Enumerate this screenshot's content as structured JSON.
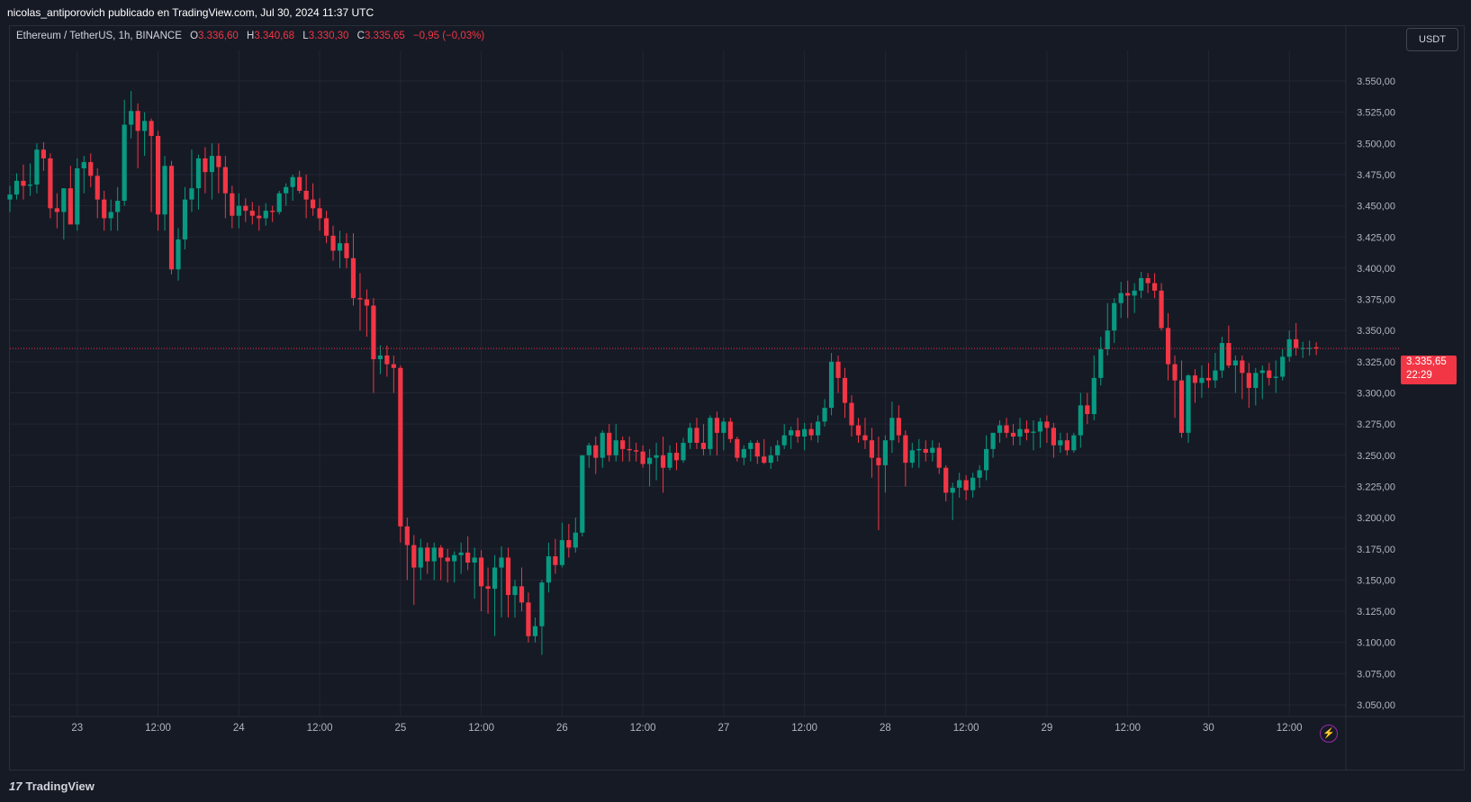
{
  "header": {
    "publisher_line": "nicolas_antiporovich publicado en TradingView.com, Jul 30, 2024 11:37 UTC"
  },
  "legend": {
    "symbol": "Ethereum / TetherUS, 1h, BINANCE",
    "o_label": "O",
    "o_value": "3.336,60",
    "h_label": "H",
    "h_value": "3.340,68",
    "l_label": "L",
    "l_value": "3.330,30",
    "c_label": "C",
    "c_value": "3.335,65",
    "change": "−0,95 (−0,03%)"
  },
  "currency_button": "USDT",
  "last_price": {
    "price": "3.335,65",
    "countdown": "22:29"
  },
  "footer": {
    "brand": "TradingView",
    "brand_mark": "17"
  },
  "colors": {
    "up": "#089981",
    "down": "#f23645",
    "background": "#161a25",
    "grid": "#232632",
    "axis_text": "#b2b5be"
  },
  "chart_data": {
    "type": "candlestick",
    "title": "",
    "y_axis": {
      "ylim": [
        3035,
        3575
      ],
      "ticks": [
        3050,
        3075,
        3100,
        3125,
        3150,
        3175,
        3200,
        3225,
        3250,
        3275,
        3300,
        3325,
        3350,
        3375,
        3400,
        3425,
        3450,
        3475,
        3500,
        3525,
        3550
      ],
      "tick_labels": [
        "3.050,00",
        "3.075,00",
        "3.100,00",
        "3.125,00",
        "3.150,00",
        "3.175,00",
        "3.200,00",
        "3.225,00",
        "3.250,00",
        "3.275,00",
        "3.300,00",
        "3.325,00",
        "3.350,00",
        "3.375,00",
        "3.400,00",
        "3.425,00",
        "3.450,00",
        "3.475,00",
        "3.500,00",
        "3.525,00",
        "3.550,00"
      ]
    },
    "x_axis": {
      "labels": [
        "23",
        "12:00",
        "24",
        "12:00",
        "25",
        "12:00",
        "26",
        "12:00",
        "27",
        "12:00",
        "28",
        "12:00",
        "29",
        "12:00",
        "30",
        "12:00"
      ],
      "label_bar_index": [
        10,
        22,
        34,
        46,
        58,
        70,
        82,
        94,
        106,
        118,
        130,
        142,
        154,
        166,
        178,
        190
      ]
    },
    "last_price_line": 3335.65,
    "ohlc": [
      [
        3455,
        3466,
        3445,
        3459
      ],
      [
        3459,
        3476,
        3455,
        3470
      ],
      [
        3470,
        3483,
        3455,
        3466
      ],
      [
        3466,
        3484,
        3458,
        3467
      ],
      [
        3467,
        3500,
        3460,
        3495
      ],
      [
        3495,
        3501,
        3478,
        3488
      ],
      [
        3488,
        3492,
        3440,
        3448
      ],
      [
        3448,
        3460,
        3432,
        3445
      ],
      [
        3445,
        3464,
        3423,
        3464
      ],
      [
        3464,
        3482,
        3440,
        3435
      ],
      [
        3435,
        3488,
        3430,
        3480
      ],
      [
        3480,
        3490,
        3460,
        3485
      ],
      [
        3485,
        3492,
        3465,
        3474
      ],
      [
        3474,
        3480,
        3440,
        3455
      ],
      [
        3455,
        3462,
        3430,
        3440
      ],
      [
        3440,
        3455,
        3430,
        3445
      ],
      [
        3445,
        3465,
        3430,
        3454
      ],
      [
        3454,
        3535,
        3450,
        3515
      ],
      [
        3515,
        3542,
        3504,
        3526
      ],
      [
        3526,
        3532,
        3480,
        3510
      ],
      [
        3510,
        3525,
        3490,
        3518
      ],
      [
        3518,
        3520,
        3445,
        3506
      ],
      [
        3506,
        3510,
        3430,
        3443
      ],
      [
        3443,
        3490,
        3430,
        3482
      ],
      [
        3482,
        3486,
        3395,
        3399
      ],
      [
        3399,
        3432,
        3390,
        3423
      ],
      [
        3423,
        3465,
        3415,
        3455
      ],
      [
        3455,
        3495,
        3445,
        3464
      ],
      [
        3464,
        3491,
        3447,
        3488
      ],
      [
        3488,
        3497,
        3460,
        3477
      ],
      [
        3477,
        3500,
        3455,
        3490
      ],
      [
        3490,
        3500,
        3460,
        3481
      ],
      [
        3481,
        3490,
        3440,
        3460
      ],
      [
        3460,
        3466,
        3432,
        3442
      ],
      [
        3442,
        3460,
        3432,
        3450
      ],
      [
        3450,
        3456,
        3437,
        3446
      ],
      [
        3446,
        3453,
        3435,
        3442
      ],
      [
        3442,
        3450,
        3430,
        3440
      ],
      [
        3440,
        3452,
        3434,
        3446
      ],
      [
        3446,
        3450,
        3437,
        3445
      ],
      [
        3445,
        3462,
        3443,
        3460
      ],
      [
        3460,
        3468,
        3450,
        3465
      ],
      [
        3465,
        3475,
        3454,
        3473
      ],
      [
        3473,
        3478,
        3460,
        3462
      ],
      [
        3462,
        3475,
        3440,
        3455
      ],
      [
        3455,
        3468,
        3442,
        3448
      ],
      [
        3448,
        3456,
        3430,
        3440
      ],
      [
        3440,
        3446,
        3420,
        3426
      ],
      [
        3426,
        3434,
        3406,
        3414
      ],
      [
        3414,
        3430,
        3400,
        3420
      ],
      [
        3420,
        3428,
        3400,
        3408
      ],
      [
        3408,
        3428,
        3370,
        3376
      ],
      [
        3376,
        3396,
        3350,
        3375
      ],
      [
        3375,
        3383,
        3345,
        3370
      ],
      [
        3370,
        3376,
        3300,
        3327
      ],
      [
        3327,
        3338,
        3315,
        3330
      ],
      [
        3330,
        3338,
        3313,
        3323
      ],
      [
        3323,
        3330,
        3300,
        3320
      ],
      [
        3320,
        3322,
        3180,
        3193
      ],
      [
        3193,
        3200,
        3150,
        3178
      ],
      [
        3178,
        3186,
        3130,
        3160
      ],
      [
        3160,
        3183,
        3150,
        3176
      ],
      [
        3176,
        3180,
        3155,
        3165
      ],
      [
        3165,
        3180,
        3150,
        3176
      ],
      [
        3176,
        3178,
        3150,
        3168
      ],
      [
        3168,
        3175,
        3148,
        3165
      ],
      [
        3165,
        3173,
        3148,
        3170
      ],
      [
        3170,
        3180,
        3155,
        3172
      ],
      [
        3172,
        3185,
        3158,
        3164
      ],
      [
        3164,
        3176,
        3135,
        3168
      ],
      [
        3168,
        3174,
        3125,
        3145
      ],
      [
        3145,
        3160,
        3123,
        3143
      ],
      [
        3143,
        3170,
        3105,
        3160
      ],
      [
        3160,
        3177,
        3120,
        3168
      ],
      [
        3168,
        3176,
        3120,
        3138
      ],
      [
        3138,
        3150,
        3120,
        3145
      ],
      [
        3145,
        3160,
        3125,
        3132
      ],
      [
        3132,
        3140,
        3100,
        3105
      ],
      [
        3105,
        3120,
        3100,
        3113
      ],
      [
        3113,
        3150,
        3090,
        3148
      ],
      [
        3148,
        3180,
        3140,
        3169
      ],
      [
        3169,
        3183,
        3155,
        3162
      ],
      [
        3162,
        3196,
        3160,
        3182
      ],
      [
        3182,
        3195,
        3168,
        3176
      ],
      [
        3176,
        3200,
        3172,
        3188
      ],
      [
        3188,
        3250,
        3185,
        3250
      ],
      [
        3250,
        3260,
        3240,
        3258
      ],
      [
        3258,
        3265,
        3235,
        3248
      ],
      [
        3248,
        3270,
        3240,
        3268
      ],
      [
        3268,
        3275,
        3245,
        3250
      ],
      [
        3250,
        3275,
        3245,
        3262
      ],
      [
        3262,
        3265,
        3245,
        3255
      ],
      [
        3255,
        3265,
        3245,
        3254
      ],
      [
        3254,
        3260,
        3245,
        3253
      ],
      [
        3253,
        3258,
        3240,
        3243
      ],
      [
        3243,
        3255,
        3225,
        3248
      ],
      [
        3248,
        3260,
        3230,
        3250
      ],
      [
        3250,
        3265,
        3220,
        3240
      ],
      [
        3240,
        3258,
        3238,
        3252
      ],
      [
        3252,
        3260,
        3238,
        3246
      ],
      [
        3246,
        3264,
        3244,
        3260
      ],
      [
        3260,
        3276,
        3255,
        3272
      ],
      [
        3272,
        3280,
        3255,
        3260
      ],
      [
        3260,
        3275,
        3250,
        3255
      ],
      [
        3255,
        3282,
        3250,
        3280
      ],
      [
        3280,
        3285,
        3250,
        3268
      ],
      [
        3268,
        3280,
        3254,
        3277
      ],
      [
        3277,
        3280,
        3260,
        3263
      ],
      [
        3263,
        3265,
        3245,
        3248
      ],
      [
        3248,
        3258,
        3242,
        3255
      ],
      [
        3255,
        3262,
        3245,
        3260
      ],
      [
        3260,
        3262,
        3243,
        3249
      ],
      [
        3249,
        3263,
        3243,
        3244
      ],
      [
        3244,
        3257,
        3239,
        3250
      ],
      [
        3250,
        3262,
        3245,
        3258
      ],
      [
        3258,
        3275,
        3255,
        3266
      ],
      [
        3266,
        3273,
        3255,
        3270
      ],
      [
        3270,
        3280,
        3260,
        3265
      ],
      [
        3265,
        3276,
        3254,
        3271
      ],
      [
        3271,
        3276,
        3262,
        3266
      ],
      [
        3266,
        3282,
        3260,
        3277
      ],
      [
        3277,
        3295,
        3273,
        3288
      ],
      [
        3288,
        3332,
        3282,
        3325
      ],
      [
        3325,
        3330,
        3300,
        3312
      ],
      [
        3312,
        3320,
        3280,
        3292
      ],
      [
        3292,
        3298,
        3265,
        3274
      ],
      [
        3274,
        3280,
        3260,
        3266
      ],
      [
        3266,
        3280,
        3255,
        3262
      ],
      [
        3262,
        3272,
        3232,
        3248
      ],
      [
        3248,
        3265,
        3190,
        3242
      ],
      [
        3242,
        3266,
        3220,
        3262
      ],
      [
        3262,
        3293,
        3252,
        3280
      ],
      [
        3280,
        3290,
        3260,
        3266
      ],
      [
        3266,
        3270,
        3225,
        3244
      ],
      [
        3244,
        3260,
        3240,
        3254
      ],
      [
        3254,
        3263,
        3240,
        3255
      ],
      [
        3255,
        3262,
        3245,
        3252
      ],
      [
        3252,
        3262,
        3245,
        3256
      ],
      [
        3256,
        3260,
        3235,
        3240
      ],
      [
        3240,
        3242,
        3213,
        3220
      ],
      [
        3220,
        3228,
        3198,
        3224
      ],
      [
        3224,
        3236,
        3216,
        3230
      ],
      [
        3230,
        3234,
        3214,
        3222
      ],
      [
        3222,
        3236,
        3216,
        3232
      ],
      [
        3232,
        3242,
        3224,
        3238
      ],
      [
        3238,
        3266,
        3230,
        3255
      ],
      [
        3255,
        3266,
        3248,
        3268
      ],
      [
        3268,
        3278,
        3260,
        3274
      ],
      [
        3274,
        3280,
        3264,
        3268
      ],
      [
        3268,
        3275,
        3258,
        3265
      ],
      [
        3265,
        3280,
        3258,
        3271
      ],
      [
        3271,
        3278,
        3262,
        3268
      ],
      [
        3268,
        3278,
        3254,
        3269
      ],
      [
        3269,
        3280,
        3256,
        3277
      ],
      [
        3277,
        3282,
        3260,
        3272
      ],
      [
        3272,
        3276,
        3248,
        3258
      ],
      [
        3258,
        3268,
        3252,
        3262
      ],
      [
        3262,
        3268,
        3250,
        3254
      ],
      [
        3254,
        3268,
        3252,
        3266
      ],
      [
        3266,
        3300,
        3256,
        3290
      ],
      [
        3290,
        3300,
        3275,
        3283
      ],
      [
        3283,
        3330,
        3278,
        3312
      ],
      [
        3312,
        3345,
        3306,
        3335
      ],
      [
        3335,
        3372,
        3330,
        3350
      ],
      [
        3350,
        3376,
        3340,
        3372
      ],
      [
        3372,
        3389,
        3360,
        3380
      ],
      [
        3380,
        3390,
        3360,
        3378
      ],
      [
        3378,
        3388,
        3364,
        3382
      ],
      [
        3382,
        3397,
        3376,
        3392
      ],
      [
        3392,
        3396,
        3380,
        3388
      ],
      [
        3388,
        3396,
        3376,
        3382
      ],
      [
        3382,
        3388,
        3350,
        3352
      ],
      [
        3352,
        3364,
        3310,
        3323
      ],
      [
        3323,
        3330,
        3280,
        3310
      ],
      [
        3310,
        3326,
        3264,
        3268
      ],
      [
        3268,
        3315,
        3260,
        3314
      ],
      [
        3314,
        3319,
        3292,
        3308
      ],
      [
        3308,
        3322,
        3296,
        3312
      ],
      [
        3312,
        3324,
        3304,
        3310
      ],
      [
        3310,
        3332,
        3304,
        3318
      ],
      [
        3318,
        3345,
        3312,
        3340
      ],
      [
        3340,
        3354,
        3320,
        3322
      ],
      [
        3322,
        3330,
        3300,
        3326
      ],
      [
        3326,
        3330,
        3295,
        3316
      ],
      [
        3316,
        3324,
        3288,
        3304
      ],
      [
        3304,
        3320,
        3290,
        3316
      ],
      [
        3316,
        3322,
        3295,
        3318
      ],
      [
        3318,
        3324,
        3306,
        3312
      ],
      [
        3312,
        3326,
        3300,
        3313
      ],
      [
        3313,
        3335,
        3310,
        3329
      ],
      [
        3329,
        3350,
        3325,
        3343
      ],
      [
        3343,
        3356,
        3330,
        3336
      ],
      [
        3336,
        3341,
        3328,
        3336
      ],
      [
        3336,
        3342,
        3330,
        3336
      ],
      [
        3336.6,
        3340.68,
        3330.3,
        3335.65
      ]
    ]
  }
}
